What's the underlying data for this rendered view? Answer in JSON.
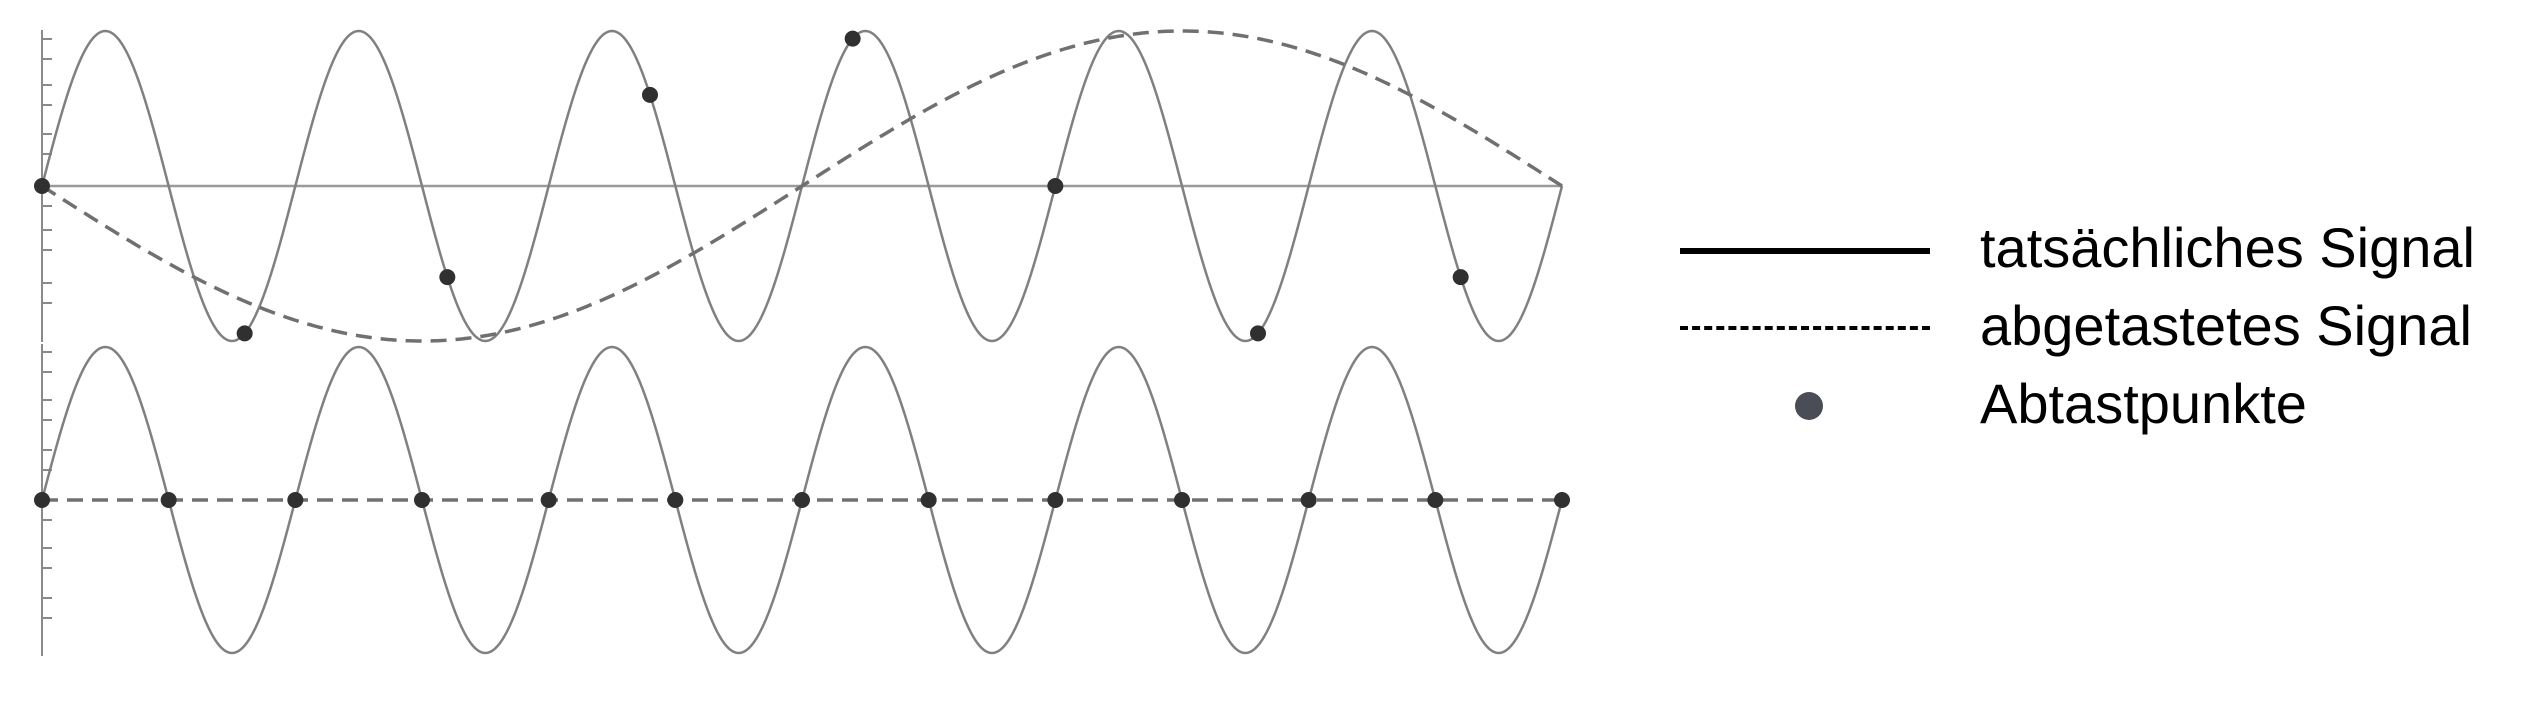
{
  "chart_data": [
    {
      "type": "line",
      "x_range": [
        0,
        6
      ],
      "y_range": [
        -1,
        1
      ],
      "grid": false,
      "series": [
        {
          "role": "actual",
          "frequency": 1,
          "amplitude": 1,
          "phase": 0
        },
        {
          "role": "sampled",
          "frequency": 0.16667,
          "amplitude": 1,
          "sign": -1
        },
        {
          "role": "samples",
          "x": [
            0,
            0.8,
            1.6,
            2.4,
            3.2,
            4.0,
            4.8,
            5.6
          ],
          "y": [
            0,
            -0.951,
            -0.588,
            0.588,
            0.951,
            0,
            -0.951,
            -0.588
          ]
        }
      ]
    },
    {
      "type": "line",
      "x_range": [
        0,
        6
      ],
      "y_range": [
        -1,
        1
      ],
      "grid": false,
      "series": [
        {
          "role": "actual",
          "frequency": 1,
          "amplitude": 1,
          "phase": 0
        },
        {
          "role": "sampled",
          "constant": 0
        },
        {
          "role": "samples",
          "x": [
            0,
            0.5,
            1.0,
            1.5,
            2.0,
            2.5,
            3.0,
            3.5,
            4.0,
            4.5,
            5.0,
            5.5,
            6.0
          ],
          "y": [
            0,
            0,
            0,
            0,
            0,
            0,
            0,
            0,
            0,
            0,
            0,
            0,
            0
          ]
        }
      ]
    }
  ],
  "legend": {
    "placement": "right",
    "items": [
      {
        "label": "tatsächliches Signal",
        "style": "solid"
      },
      {
        "label": "abgetastetes Signal",
        "style": "dashed"
      },
      {
        "label": "Abtastpunkte",
        "style": "dot"
      }
    ]
  },
  "colors": {
    "signal": "#808080",
    "sampled": "#707070",
    "baseline": "#9a9a9a",
    "point": "#303030",
    "axis": "#8a8a8a"
  }
}
